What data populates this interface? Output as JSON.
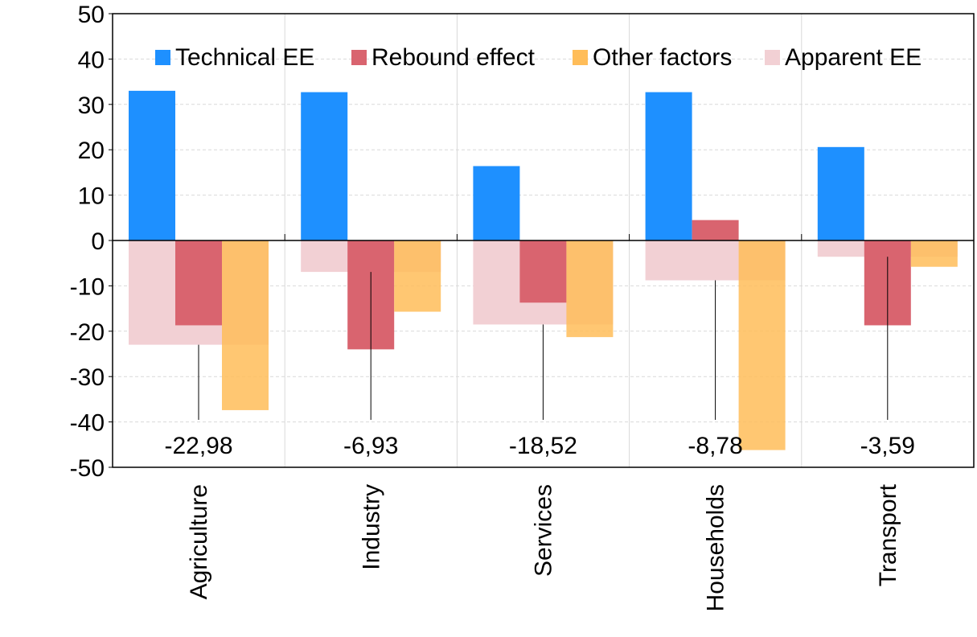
{
  "chart_data": {
    "type": "bar",
    "categories": [
      "Agriculture",
      "Industry",
      "Services",
      "Households",
      "Transport"
    ],
    "series": [
      {
        "name": "Technical EE",
        "color": "#1e90ff",
        "values": [
          33.0,
          32.7,
          16.4,
          32.7,
          20.6
        ]
      },
      {
        "name": "Rebound effect",
        "color": "#d9646f",
        "values": [
          -18.7,
          -24.0,
          -13.7,
          4.5,
          -18.7
        ]
      },
      {
        "name": "Other factors",
        "color": "#ffbd59",
        "values": [
          -37.4,
          -15.7,
          -21.3,
          -46.2,
          -5.8
        ]
      },
      {
        "name": "Apparent EE",
        "color": "#f2d0d4",
        "values": [
          -22.98,
          -6.93,
          -18.52,
          -8.78,
          -3.59
        ]
      }
    ],
    "data_labels": [
      "-22,98",
      "-6,93",
      "-18,52",
      "-8,78",
      "-3,59"
    ],
    "ylim": [
      -50,
      50
    ],
    "yticks": [
      50,
      40,
      30,
      20,
      10,
      0,
      -10,
      -20,
      -30,
      -40,
      -50
    ],
    "xlabel": "",
    "ylabel": "",
    "grid": true,
    "legend_position": "top"
  }
}
